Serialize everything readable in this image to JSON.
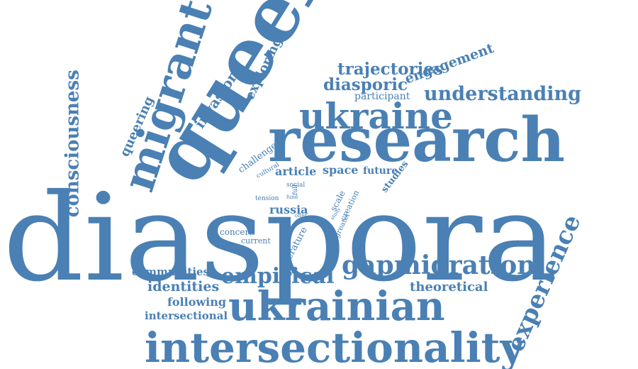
{
  "word_cloud": {
    "color": "#4a80b4",
    "words": {
      "diaspora": "diaspora",
      "research": "research",
      "queer": "queer",
      "ukrainian": "ukrainian",
      "intersectionality": "intersectionality",
      "ukraine": "ukraine",
      "migrant": "migrant",
      "gapmigration": "gapmigration",
      "experience": "experience",
      "consciousness": "consciousness",
      "empirical": "empirical",
      "understanding": "understanding",
      "trajectories": "trajectories",
      "diasporic": "diasporic",
      "engagement": "engagement",
      "participant": "participant",
      "exploring": "exploring",
      "invasion": "invasion",
      "queering": "queering",
      "challenge": "challenge",
      "cultural": "cultural",
      "article": "article",
      "space": "space",
      "future": "future",
      "studies": "studies",
      "social": "social",
      "full": "full",
      "tension": "tension",
      "fund": "fund",
      "russia": "russia",
      "offer": "offer",
      "scale": "scale",
      "study": "study",
      "creation": "creation",
      "greater": "greater",
      "concern": "concern",
      "current": "current",
      "literature": "literature",
      "communities": "communities",
      "identities": "identities",
      "theoretical": "theoretical",
      "following": "following",
      "intersectional": "intersectional"
    }
  }
}
